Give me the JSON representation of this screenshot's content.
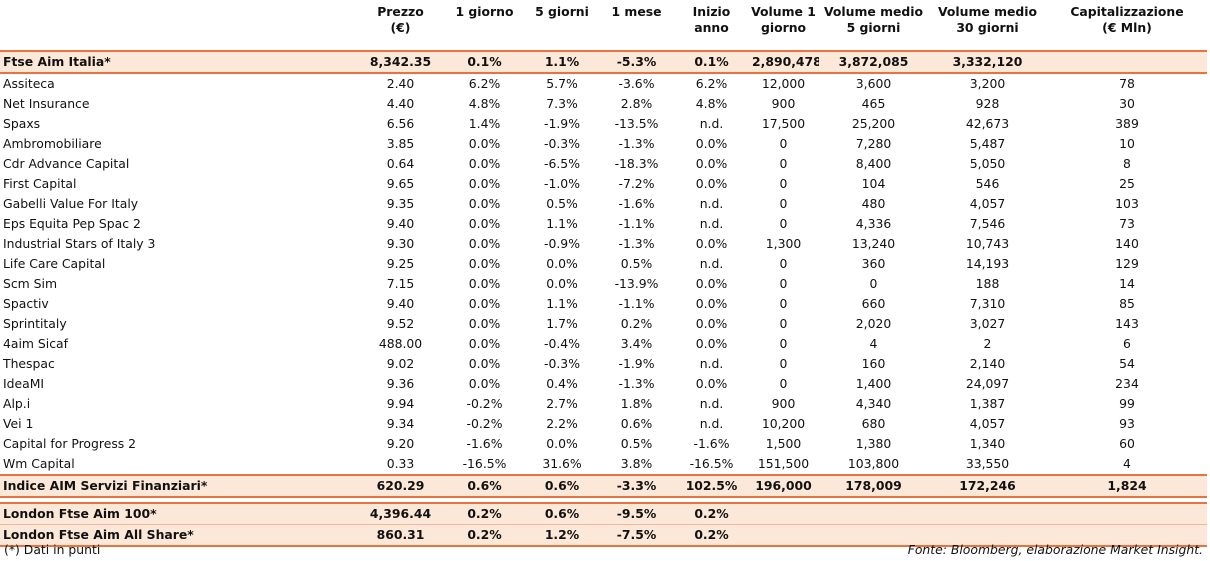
{
  "headers": [
    "",
    "Prezzo\n(€)",
    "1 giorno",
    "5 giorni",
    "1 mese",
    "Inizio anno",
    "Volume 1\ngiorno",
    "Volume medio\n5 giorni",
    "Volume medio\n30 giorni",
    "Capitalizzazione\n(€ Mln)"
  ],
  "index_top": [
    "Ftse Aim Italia*",
    "8,342.35",
    "0.1%",
    "1.1%",
    "-5.3%",
    "0.1%",
    "2,890,478",
    "3,872,085",
    "3,332,120",
    ""
  ],
  "rows": [
    [
      "Assiteca",
      "2.40",
      "6.2%",
      "5.7%",
      "-3.6%",
      "6.2%",
      "12,000",
      "3,600",
      "3,200",
      "78"
    ],
    [
      "Net Insurance",
      "4.40",
      "4.8%",
      "7.3%",
      "2.8%",
      "4.8%",
      "900",
      "465",
      "928",
      "30"
    ],
    [
      "Spaxs",
      "6.56",
      "1.4%",
      "-1.9%",
      "-13.5%",
      "n.d.",
      "17,500",
      "25,200",
      "42,673",
      "389"
    ],
    [
      "Ambromobiliare",
      "3.85",
      "0.0%",
      "-0.3%",
      "-1.3%",
      "0.0%",
      "0",
      "7,280",
      "5,487",
      "10"
    ],
    [
      "Cdr Advance Capital",
      "0.64",
      "0.0%",
      "-6.5%",
      "-18.3%",
      "0.0%",
      "0",
      "8,400",
      "5,050",
      "8"
    ],
    [
      "First Capital",
      "9.65",
      "0.0%",
      "-1.0%",
      "-7.2%",
      "0.0%",
      "0",
      "104",
      "546",
      "25"
    ],
    [
      "Gabelli Value For Italy",
      "9.35",
      "0.0%",
      "0.5%",
      "-1.6%",
      "n.d.",
      "0",
      "480",
      "4,057",
      "103"
    ],
    [
      "Eps Equita Pep Spac 2",
      "9.40",
      "0.0%",
      "1.1%",
      "-1.1%",
      "n.d.",
      "0",
      "4,336",
      "7,546",
      "73"
    ],
    [
      "Industrial Stars of Italy 3",
      "9.30",
      "0.0%",
      "-0.9%",
      "-1.3%",
      "0.0%",
      "1,300",
      "13,240",
      "10,743",
      "140"
    ],
    [
      "Life Care Capital",
      "9.25",
      "0.0%",
      "0.0%",
      "0.5%",
      "n.d.",
      "0",
      "360",
      "14,193",
      "129"
    ],
    [
      "Scm Sim",
      "7.15",
      "0.0%",
      "0.0%",
      "-13.9%",
      "0.0%",
      "0",
      "0",
      "188",
      "14"
    ],
    [
      "Spactiv",
      "9.40",
      "0.0%",
      "1.1%",
      "-1.1%",
      "0.0%",
      "0",
      "660",
      "7,310",
      "85"
    ],
    [
      "Sprintitaly",
      "9.52",
      "0.0%",
      "1.7%",
      "0.2%",
      "0.0%",
      "0",
      "2,020",
      "3,027",
      "143"
    ],
    [
      "4aim Sicaf",
      "488.00",
      "0.0%",
      "-0.4%",
      "3.4%",
      "0.0%",
      "0",
      "4",
      "2",
      "6"
    ],
    [
      "Thespac",
      "9.02",
      "0.0%",
      "-0.3%",
      "-1.9%",
      "n.d.",
      "0",
      "160",
      "2,140",
      "54"
    ],
    [
      "IdeaMI",
      "9.36",
      "0.0%",
      "0.4%",
      "-1.3%",
      "0.0%",
      "0",
      "1,400",
      "24,097",
      "234"
    ],
    [
      "Alp.i",
      "9.94",
      "-0.2%",
      "2.7%",
      "1.8%",
      "n.d.",
      "900",
      "4,340",
      "1,387",
      "99"
    ],
    [
      "Vei 1",
      "9.34",
      "-0.2%",
      "2.2%",
      "0.6%",
      "n.d.",
      "10,200",
      "680",
      "4,057",
      "93"
    ],
    [
      "Capital for Progress 2",
      "9.20",
      "-1.6%",
      "0.0%",
      "0.5%",
      "-1.6%",
      "1,500",
      "1,380",
      "1,340",
      "60"
    ],
    [
      "Wm Capital",
      "0.33",
      "-16.5%",
      "31.6%",
      "3.8%",
      "-16.5%",
      "151,500",
      "103,800",
      "33,550",
      "4"
    ]
  ],
  "index_sector": [
    "Indice AIM Servizi Finanziari*",
    "620.29",
    "0.6%",
    "0.6%",
    "-3.3%",
    "102.5%",
    "196,000",
    "178,009",
    "172,246",
    "1,824"
  ],
  "london": [
    [
      "London Ftse Aim 100*",
      "4,396.44",
      "0.2%",
      "0.6%",
      "-9.5%",
      "0.2%",
      "",
      "",
      "",
      ""
    ],
    [
      "London Ftse Aim All Share*",
      "860.31",
      "0.2%",
      "1.2%",
      "-7.5%",
      "0.2%",
      "",
      "",
      "",
      ""
    ]
  ],
  "footer": {
    "note": "(*) Dati in punti",
    "source": "Fonte: Bloomberg, elaborazione Market Insight."
  },
  "colors": {
    "accent_line": "#e8733f",
    "summary_fill": "#fce8d8"
  }
}
